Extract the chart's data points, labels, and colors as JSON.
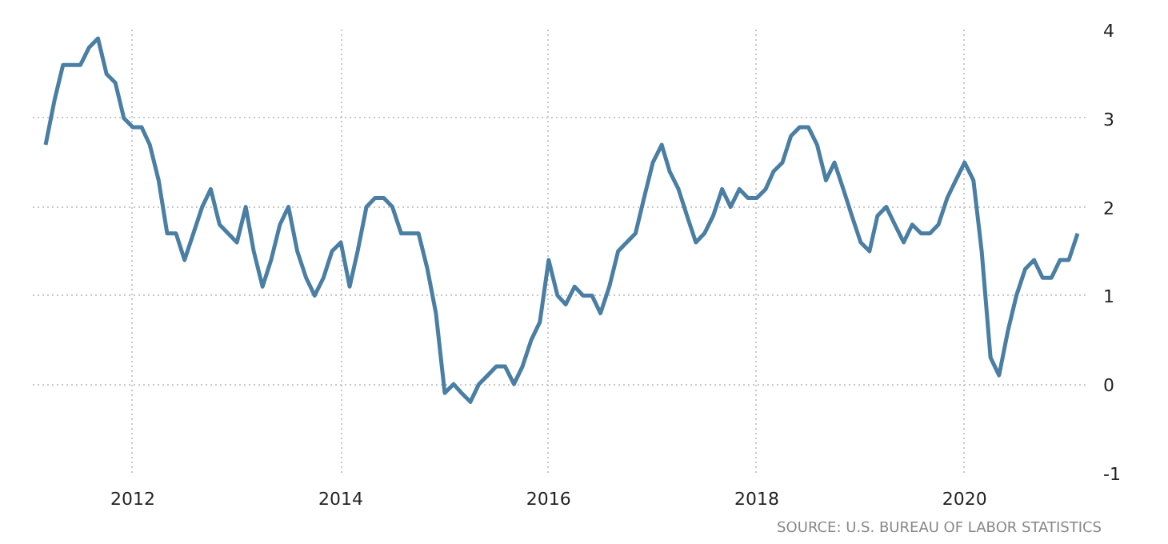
{
  "chart_data": {
    "type": "line",
    "x": [
      "2011-03",
      "2011-04",
      "2011-05",
      "2011-06",
      "2011-07",
      "2011-08",
      "2011-09",
      "2011-10",
      "2011-11",
      "2011-12",
      "2012-01",
      "2012-02",
      "2012-03",
      "2012-04",
      "2012-05",
      "2012-06",
      "2012-07",
      "2012-08",
      "2012-09",
      "2012-10",
      "2012-11",
      "2012-12",
      "2013-01",
      "2013-02",
      "2013-03",
      "2013-04",
      "2013-05",
      "2013-06",
      "2013-07",
      "2013-08",
      "2013-09",
      "2013-10",
      "2013-11",
      "2013-12",
      "2014-01",
      "2014-02",
      "2014-03",
      "2014-04",
      "2014-05",
      "2014-06",
      "2014-07",
      "2014-08",
      "2014-09",
      "2014-10",
      "2014-11",
      "2014-12",
      "2015-01",
      "2015-02",
      "2015-03",
      "2015-04",
      "2015-05",
      "2015-06",
      "2015-07",
      "2015-08",
      "2015-09",
      "2015-10",
      "2015-11",
      "2015-12",
      "2016-01",
      "2016-02",
      "2016-03",
      "2016-04",
      "2016-05",
      "2016-06",
      "2016-07",
      "2016-08",
      "2016-09",
      "2016-10",
      "2016-11",
      "2016-12",
      "2017-01",
      "2017-02",
      "2017-03",
      "2017-04",
      "2017-05",
      "2017-06",
      "2017-07",
      "2017-08",
      "2017-09",
      "2017-10",
      "2017-11",
      "2017-12",
      "2018-01",
      "2018-02",
      "2018-03",
      "2018-04",
      "2018-05",
      "2018-06",
      "2018-07",
      "2018-08",
      "2018-09",
      "2018-10",
      "2018-11",
      "2018-12",
      "2019-01",
      "2019-02",
      "2019-03",
      "2019-04",
      "2019-05",
      "2019-06",
      "2019-07",
      "2019-08",
      "2019-09",
      "2019-10",
      "2019-11",
      "2019-12",
      "2020-01",
      "2020-02",
      "2020-03",
      "2020-04",
      "2020-05",
      "2020-06",
      "2020-07",
      "2020-08",
      "2020-09",
      "2020-10",
      "2020-11",
      "2020-12",
      "2021-01",
      "2021-02"
    ],
    "series": [
      {
        "color": "#4a7fa3",
        "values": [
          2.7,
          3.2,
          3.6,
          3.6,
          3.6,
          3.8,
          3.9,
          3.5,
          3.4,
          3.0,
          2.9,
          2.9,
          2.7,
          2.3,
          1.7,
          1.7,
          1.4,
          1.7,
          2.0,
          2.2,
          1.8,
          1.7,
          1.6,
          2.0,
          1.5,
          1.1,
          1.4,
          1.8,
          2.0,
          1.5,
          1.2,
          1.0,
          1.2,
          1.5,
          1.6,
          1.1,
          1.5,
          2.0,
          2.1,
          2.1,
          2.0,
          1.7,
          1.7,
          1.7,
          1.3,
          0.8,
          -0.1,
          0.0,
          -0.1,
          -0.2,
          0.0,
          0.1,
          0.2,
          0.2,
          0.0,
          0.2,
          0.5,
          0.7,
          1.4,
          1.0,
          0.9,
          1.1,
          1.0,
          1.0,
          0.8,
          1.1,
          1.5,
          1.6,
          1.7,
          2.1,
          2.5,
          2.7,
          2.4,
          2.2,
          1.9,
          1.6,
          1.7,
          1.9,
          2.2,
          2.0,
          2.2,
          2.1,
          2.1,
          2.2,
          2.4,
          2.5,
          2.8,
          2.9,
          2.9,
          2.7,
          2.3,
          2.5,
          2.2,
          1.9,
          1.6,
          1.5,
          1.9,
          2.0,
          1.8,
          1.6,
          1.8,
          1.7,
          1.7,
          1.8,
          2.1,
          2.3,
          2.5,
          2.3,
          1.5,
          0.3,
          0.1,
          0.6,
          1.0,
          1.3,
          1.4,
          1.2,
          1.2,
          1.4,
          1.4,
          1.7
        ]
      }
    ],
    "xlim": [
      "2011-01-15",
      "2021-03-01"
    ],
    "xticks": [
      {
        "value": "2012",
        "label": "2012"
      },
      {
        "value": "2014",
        "label": "2014"
      },
      {
        "value": "2016",
        "label": "2016"
      },
      {
        "value": "2018",
        "label": "2018"
      },
      {
        "value": "2020",
        "label": "2020"
      }
    ],
    "ylim": [
      -1,
      4
    ],
    "yticks": [
      -1,
      0,
      1,
      2,
      3,
      4
    ],
    "grid": true,
    "annotations": [
      "SOURCE: U.S. BUREAU OF LABOR STATISTICS"
    ]
  }
}
